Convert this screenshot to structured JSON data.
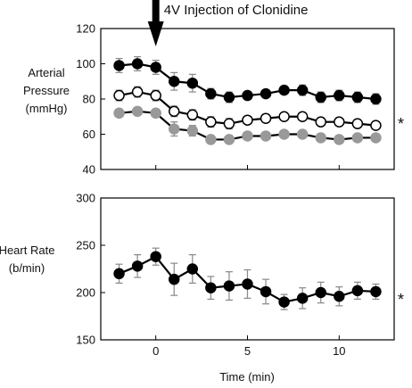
{
  "chart_data": [
    {
      "type": "line",
      "ylabel_lines": [
        "Arterial",
        "Pressure",
        "(mmHg)"
      ],
      "ylim": [
        40,
        120
      ],
      "yticks": [
        40,
        60,
        80,
        100,
        120
      ],
      "xlim": [
        -3,
        13
      ],
      "xticks": [
        0,
        5,
        10
      ],
      "annotation": "4V Injection of Clonidine",
      "annotation_x": 0,
      "significance": "*",
      "series": [
        {
          "marker_color": "#000000",
          "x": [
            -2,
            -1,
            0,
            1,
            2,
            3,
            4,
            5,
            6,
            7,
            8,
            9,
            10,
            11,
            12
          ],
          "y": [
            99,
            100,
            98,
            90,
            89,
            83,
            81,
            82,
            83,
            85,
            85,
            81,
            82,
            81,
            80
          ],
          "err": [
            4,
            4,
            4,
            5,
            5,
            3,
            3,
            2,
            2,
            2,
            3,
            3,
            3,
            3,
            3
          ]
        },
        {
          "marker_color": "#ffffff",
          "x": [
            -2,
            -1,
            0,
            1,
            2,
            3,
            4,
            5,
            6,
            7,
            8,
            9,
            10,
            11,
            12
          ],
          "y": [
            82,
            84,
            82,
            73,
            71,
            67,
            66,
            68,
            69,
            70,
            70,
            67,
            67,
            66,
            65
          ],
          "err": [
            3,
            3,
            3,
            3,
            3,
            3,
            3,
            2,
            2,
            2,
            2,
            2,
            2,
            2,
            2
          ]
        },
        {
          "marker_color": "#999999",
          "x": [
            -2,
            -1,
            0,
            1,
            2,
            3,
            4,
            5,
            6,
            7,
            8,
            9,
            10,
            11,
            12
          ],
          "y": [
            72,
            73,
            72,
            63,
            62,
            57,
            57,
            59,
            59,
            60,
            60,
            58,
            57,
            58,
            58
          ],
          "err": [
            2,
            2,
            2,
            4,
            3,
            2,
            2,
            2,
            2,
            2,
            2,
            1,
            1,
            1,
            1
          ]
        }
      ]
    },
    {
      "type": "line",
      "ylabel_lines": [
        "Heart Rate",
        "(b/min)"
      ],
      "ylim": [
        150,
        300
      ],
      "yticks": [
        150,
        200,
        250,
        300
      ],
      "xlim": [
        -3,
        13
      ],
      "xticks": [
        0,
        5,
        10
      ],
      "xlabel": "Time (min)",
      "significance": "*",
      "series": [
        {
          "marker_color": "#000000",
          "x": [
            -2,
            -1,
            0,
            1,
            2,
            3,
            4,
            5,
            6,
            7,
            8,
            9,
            10,
            11,
            12
          ],
          "y": [
            220,
            228,
            238,
            214,
            225,
            205,
            207,
            209,
            201,
            190,
            194,
            200,
            196,
            202,
            201
          ],
          "err": [
            10,
            12,
            9,
            17,
            15,
            12,
            15,
            15,
            13,
            8,
            11,
            11,
            10,
            9,
            8
          ]
        }
      ]
    }
  ]
}
